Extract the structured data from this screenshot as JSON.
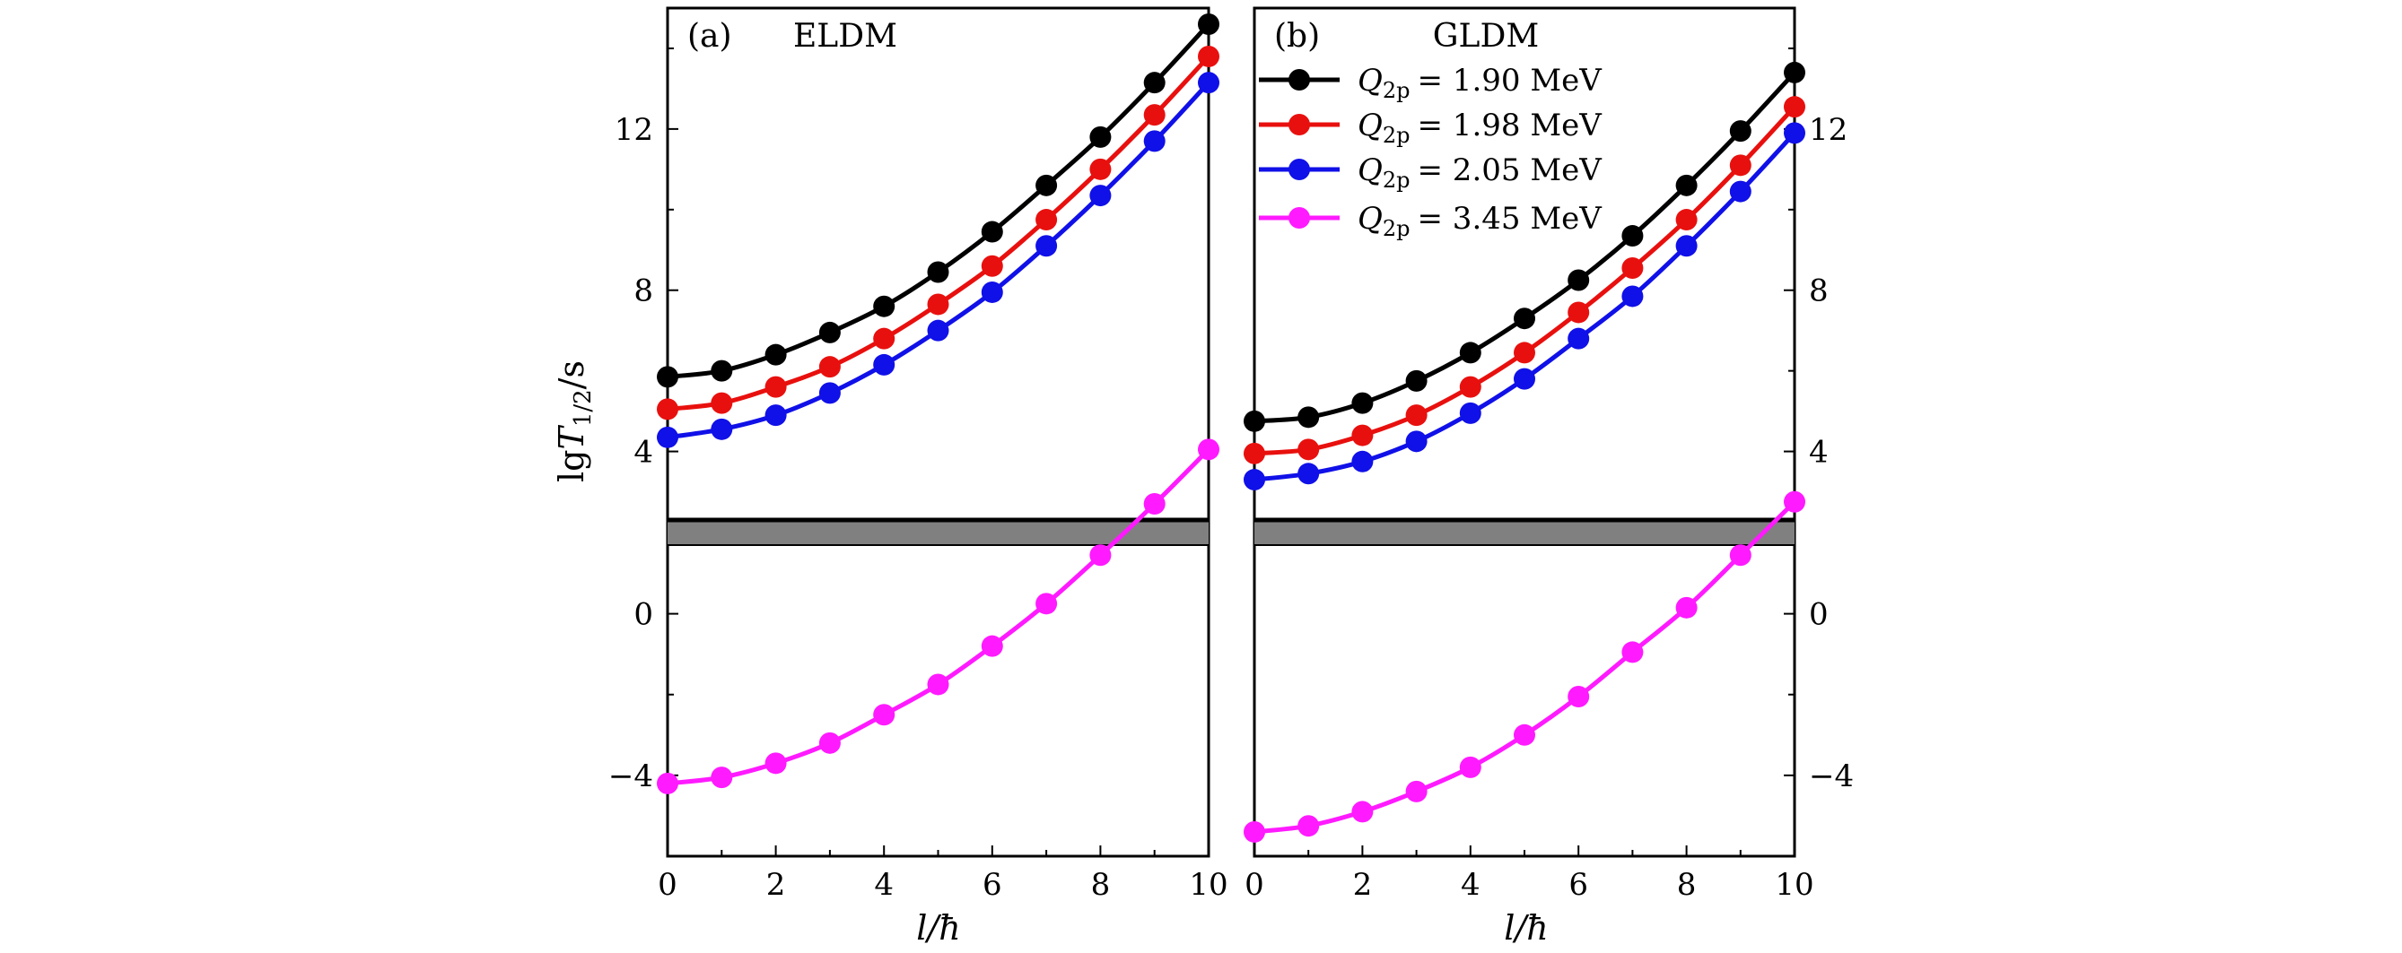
{
  "chart_data": [
    {
      "type": "line",
      "panel_label": "(a)",
      "title": "ELDM",
      "xlabel": "l/ħ",
      "ylabel": "lgT1/2/s",
      "xlim": [
        0,
        10
      ],
      "ylim": [
        -6,
        15
      ],
      "axis_break": [
        1.7,
        2.3
      ],
      "x": [
        0,
        1,
        2,
        3,
        4,
        5,
        6,
        7,
        8,
        9,
        10
      ],
      "x_ticks": [
        "0",
        "2",
        "4",
        "6",
        "8",
        "10"
      ],
      "y_ticks": [
        "−4",
        "0",
        "4",
        "8",
        "12"
      ],
      "series": [
        {
          "name": "Q2p = 1.90 MeV",
          "color": "#000000",
          "values": [
            5.85,
            6.0,
            6.4,
            6.95,
            7.6,
            8.45,
            9.45,
            10.6,
            11.8,
            13.15,
            14.6
          ]
        },
        {
          "name": "Q2p = 1.98 MeV",
          "color": "#e8100e",
          "values": [
            5.05,
            5.2,
            5.6,
            6.1,
            6.8,
            7.65,
            8.6,
            9.75,
            11.0,
            12.35,
            13.8
          ]
        },
        {
          "name": "Q2p = 2.05 MeV",
          "color": "#1010e8",
          "values": [
            4.35,
            4.55,
            4.9,
            5.45,
            6.15,
            7.0,
            7.95,
            9.1,
            10.35,
            11.7,
            13.15
          ]
        },
        {
          "name": "Q2p = 3.45 MeV",
          "color": "#ff1aff",
          "values": [
            -4.2,
            -4.05,
            -3.7,
            -3.2,
            -2.5,
            -1.75,
            -0.8,
            0.25,
            1.45,
            2.7,
            4.05
          ]
        }
      ]
    },
    {
      "type": "line",
      "panel_label": "(b)",
      "title": "GLDM",
      "xlabel": "l/ħ",
      "ylabel": "",
      "xlim": [
        0,
        10
      ],
      "ylim": [
        -6,
        15
      ],
      "axis_break": [
        1.7,
        2.3
      ],
      "x": [
        0,
        1,
        2,
        3,
        4,
        5,
        6,
        7,
        8,
        9,
        10
      ],
      "x_ticks": [
        "0",
        "2",
        "4",
        "6",
        "8",
        "10"
      ],
      "y_ticks": [
        "−4",
        "0",
        "4",
        "8",
        "12"
      ],
      "series": [
        {
          "name": "Q2p = 1.90 MeV",
          "color": "#000000",
          "values": [
            4.75,
            4.85,
            5.2,
            5.75,
            6.45,
            7.3,
            8.25,
            9.35,
            10.6,
            11.95,
            13.4
          ]
        },
        {
          "name": "Q2p = 1.98 MeV",
          "color": "#e8100e",
          "values": [
            3.95,
            4.05,
            4.4,
            4.9,
            5.6,
            6.45,
            7.45,
            8.55,
            9.75,
            11.1,
            12.55
          ]
        },
        {
          "name": "Q2p = 2.05 MeV",
          "color": "#1010e8",
          "values": [
            3.3,
            3.45,
            3.75,
            4.25,
            4.95,
            5.8,
            6.8,
            7.85,
            9.1,
            10.45,
            11.9
          ]
        },
        {
          "name": "Q2p = 3.45 MeV",
          "color": "#ff1aff",
          "values": [
            -5.4,
            -5.25,
            -4.9,
            -4.4,
            -3.8,
            -3.0,
            -2.05,
            -0.95,
            0.15,
            1.45,
            2.75
          ]
        }
      ]
    }
  ],
  "legend": {
    "placement": "top-left of panel (b)",
    "entries": [
      {
        "symbol": "Q",
        "subscript": "2p",
        "value": "= 1.90 MeV",
        "color": "#000000"
      },
      {
        "symbol": "Q",
        "subscript": "2p",
        "value": "= 1.98 MeV",
        "color": "#e8100e"
      },
      {
        "symbol": "Q",
        "subscript": "2p",
        "value": "= 2.05 MeV",
        "color": "#1010e8"
      },
      {
        "symbol": "Q",
        "subscript": "2p",
        "value": "= 3.45 MeV",
        "color": "#ff1aff"
      }
    ]
  },
  "axis_titles": {
    "x_a": {
      "symbol": "l",
      "unit": "/ħ"
    },
    "x_b": {
      "symbol": "l",
      "unit": "/ħ"
    },
    "y": {
      "prefix": "lg",
      "symbol": "T",
      "subscript": "1/2",
      "unit": "/s"
    }
  },
  "break_color": "#808080"
}
